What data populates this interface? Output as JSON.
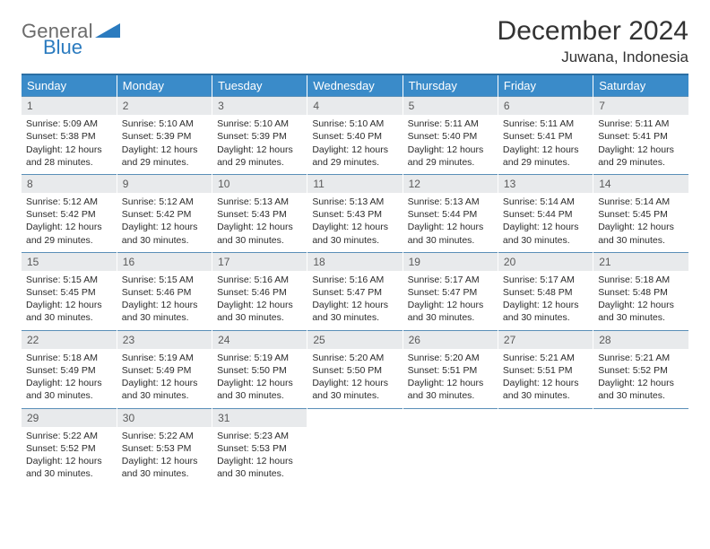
{
  "logo": {
    "line1": "General",
    "line2": "Blue"
  },
  "title": "December 2024",
  "location": "Juwana, Indonesia",
  "colors": {
    "header_bg": "#3a8bc9",
    "header_border_top": "#2c6fa3",
    "row_border": "#5a8fb8",
    "daynum_bg": "#e8eaec",
    "logo_gray": "#6b6b6b",
    "logo_blue": "#2b7bbf"
  },
  "weekdays": [
    "Sunday",
    "Monday",
    "Tuesday",
    "Wednesday",
    "Thursday",
    "Friday",
    "Saturday"
  ],
  "weeks": [
    [
      {
        "n": "1",
        "sr": "5:09 AM",
        "ss": "5:38 PM",
        "dl": "12 hours and 28 minutes."
      },
      {
        "n": "2",
        "sr": "5:10 AM",
        "ss": "5:39 PM",
        "dl": "12 hours and 29 minutes."
      },
      {
        "n": "3",
        "sr": "5:10 AM",
        "ss": "5:39 PM",
        "dl": "12 hours and 29 minutes."
      },
      {
        "n": "4",
        "sr": "5:10 AM",
        "ss": "5:40 PM",
        "dl": "12 hours and 29 minutes."
      },
      {
        "n": "5",
        "sr": "5:11 AM",
        "ss": "5:40 PM",
        "dl": "12 hours and 29 minutes."
      },
      {
        "n": "6",
        "sr": "5:11 AM",
        "ss": "5:41 PM",
        "dl": "12 hours and 29 minutes."
      },
      {
        "n": "7",
        "sr": "5:11 AM",
        "ss": "5:41 PM",
        "dl": "12 hours and 29 minutes."
      }
    ],
    [
      {
        "n": "8",
        "sr": "5:12 AM",
        "ss": "5:42 PM",
        "dl": "12 hours and 29 minutes."
      },
      {
        "n": "9",
        "sr": "5:12 AM",
        "ss": "5:42 PM",
        "dl": "12 hours and 30 minutes."
      },
      {
        "n": "10",
        "sr": "5:13 AM",
        "ss": "5:43 PM",
        "dl": "12 hours and 30 minutes."
      },
      {
        "n": "11",
        "sr": "5:13 AM",
        "ss": "5:43 PM",
        "dl": "12 hours and 30 minutes."
      },
      {
        "n": "12",
        "sr": "5:13 AM",
        "ss": "5:44 PM",
        "dl": "12 hours and 30 minutes."
      },
      {
        "n": "13",
        "sr": "5:14 AM",
        "ss": "5:44 PM",
        "dl": "12 hours and 30 minutes."
      },
      {
        "n": "14",
        "sr": "5:14 AM",
        "ss": "5:45 PM",
        "dl": "12 hours and 30 minutes."
      }
    ],
    [
      {
        "n": "15",
        "sr": "5:15 AM",
        "ss": "5:45 PM",
        "dl": "12 hours and 30 minutes."
      },
      {
        "n": "16",
        "sr": "5:15 AM",
        "ss": "5:46 PM",
        "dl": "12 hours and 30 minutes."
      },
      {
        "n": "17",
        "sr": "5:16 AM",
        "ss": "5:46 PM",
        "dl": "12 hours and 30 minutes."
      },
      {
        "n": "18",
        "sr": "5:16 AM",
        "ss": "5:47 PM",
        "dl": "12 hours and 30 minutes."
      },
      {
        "n": "19",
        "sr": "5:17 AM",
        "ss": "5:47 PM",
        "dl": "12 hours and 30 minutes."
      },
      {
        "n": "20",
        "sr": "5:17 AM",
        "ss": "5:48 PM",
        "dl": "12 hours and 30 minutes."
      },
      {
        "n": "21",
        "sr": "5:18 AM",
        "ss": "5:48 PM",
        "dl": "12 hours and 30 minutes."
      }
    ],
    [
      {
        "n": "22",
        "sr": "5:18 AM",
        "ss": "5:49 PM",
        "dl": "12 hours and 30 minutes."
      },
      {
        "n": "23",
        "sr": "5:19 AM",
        "ss": "5:49 PM",
        "dl": "12 hours and 30 minutes."
      },
      {
        "n": "24",
        "sr": "5:19 AM",
        "ss": "5:50 PM",
        "dl": "12 hours and 30 minutes."
      },
      {
        "n": "25",
        "sr": "5:20 AM",
        "ss": "5:50 PM",
        "dl": "12 hours and 30 minutes."
      },
      {
        "n": "26",
        "sr": "5:20 AM",
        "ss": "5:51 PM",
        "dl": "12 hours and 30 minutes."
      },
      {
        "n": "27",
        "sr": "5:21 AM",
        "ss": "5:51 PM",
        "dl": "12 hours and 30 minutes."
      },
      {
        "n": "28",
        "sr": "5:21 AM",
        "ss": "5:52 PM",
        "dl": "12 hours and 30 minutes."
      }
    ],
    [
      {
        "n": "29",
        "sr": "5:22 AM",
        "ss": "5:52 PM",
        "dl": "12 hours and 30 minutes."
      },
      {
        "n": "30",
        "sr": "5:22 AM",
        "ss": "5:53 PM",
        "dl": "12 hours and 30 minutes."
      },
      {
        "n": "31",
        "sr": "5:23 AM",
        "ss": "5:53 PM",
        "dl": "12 hours and 30 minutes."
      },
      null,
      null,
      null,
      null
    ]
  ],
  "labels": {
    "sunrise": "Sunrise: ",
    "sunset": "Sunset: ",
    "daylight": "Daylight: "
  }
}
